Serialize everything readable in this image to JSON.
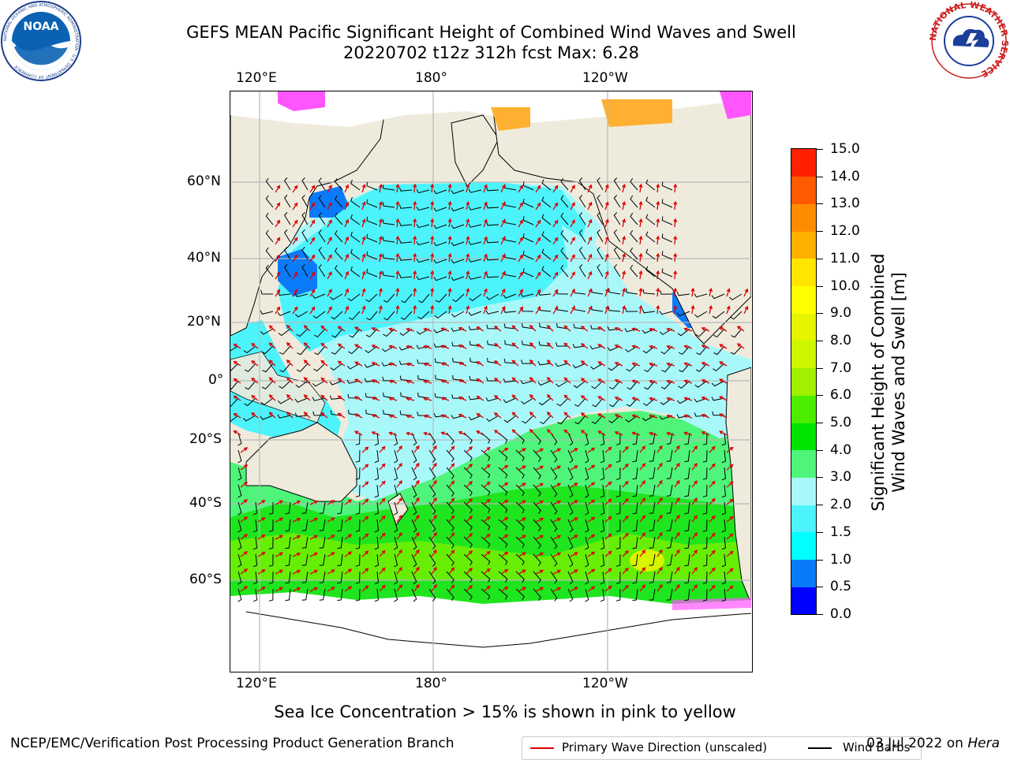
{
  "title": {
    "line1": "GEFS MEAN Pacific Significant Height of Combined Wind Waves and Swell",
    "line2": "20220702 t12z 312h fcst   Max: 6.28"
  },
  "map": {
    "top_lon_labels": [
      "120°E",
      "180°",
      "120°W"
    ],
    "bottom_lon_labels": [
      "120°E",
      "180°",
      "120°W"
    ],
    "lat_labels": [
      "60°N",
      "40°N",
      "20°N",
      "0°",
      "20°S",
      "40°S",
      "60°S"
    ],
    "colors": {
      "land": "#efebdc",
      "ice_white": "#ffffff",
      "wave_lt_cyan": "#a8f8fa",
      "wave_cyan": "#4df3fb",
      "wave_green_lt": "#4ef57a",
      "wave_green": "#1fe51f",
      "wave_yellowgreen": "#7ff000",
      "wave_blue": "#0a7bf8",
      "ice_pink": "#ff55ff",
      "ice_orange": "#ffb030"
    }
  },
  "legend": {
    "primary_wave_label": "Primary Wave Direction (unscaled)",
    "wind_barb_label": "Wind Barbs"
  },
  "colorbar": {
    "title_line1": "Significant Height of Combined",
    "title_line2": "Wind Waves and Swell [m]",
    "tick_labels": [
      "0.0",
      "0.5",
      "1.0",
      "1.5",
      "2.0",
      "3.0",
      "4.0",
      "5.0",
      "6.0",
      "7.0",
      "8.0",
      "9.0",
      "10.0",
      "11.0",
      "12.0",
      "13.0",
      "14.0",
      "15.0"
    ],
    "colors": [
      "#0000ff",
      "#0a7bf8",
      "#00ffff",
      "#4df3fb",
      "#a8f8fa",
      "#4ef57a",
      "#00e400",
      "#4ded00",
      "#a0f000",
      "#cdf700",
      "#e6f400",
      "#ffff00",
      "#ffe500",
      "#ffb000",
      "#ff8c00",
      "#ff5a00",
      "#ff2000"
    ]
  },
  "footer": {
    "caption": "Sea Ice Concentration > 15% is shown in pink to yellow",
    "left": "NCEP/EMC/Verification Post Processing Product Generation Branch",
    "right_date": "03 Jul 2022 on",
    "right_host": "Hera"
  },
  "logos": {
    "noaa_text": "NOAA",
    "noaa_ring": "NATIONAL OCEANIC AND ATMOSPHERIC ADMINISTRATION · U.S. DEPARTMENT OF COMMERCE",
    "nws_ring": "NATIONAL WEATHER SERVICE"
  }
}
